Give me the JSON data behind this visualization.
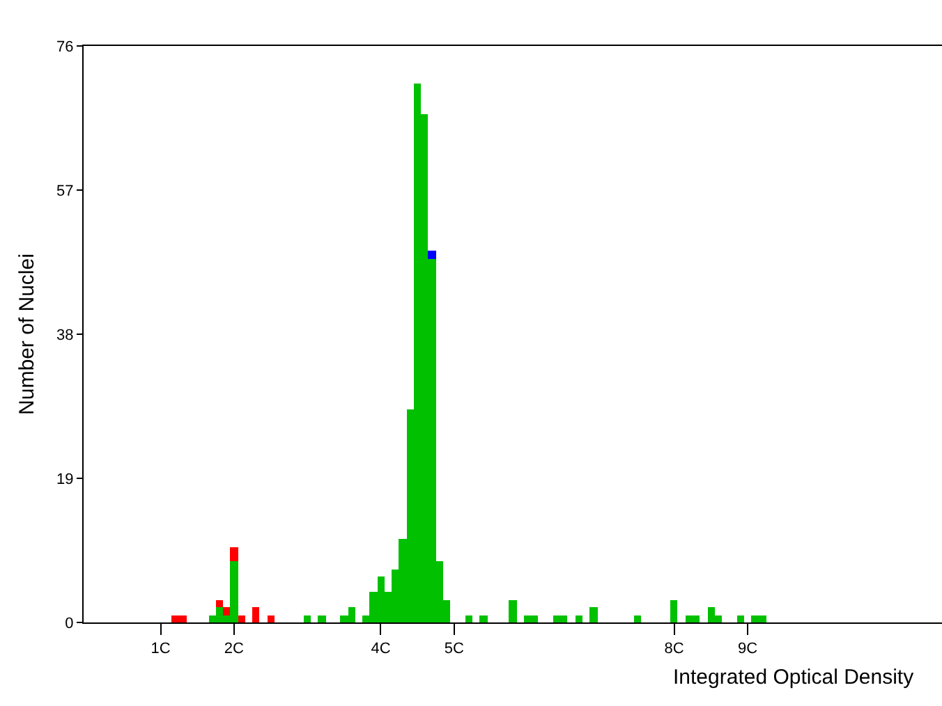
{
  "chart_data": {
    "type": "bar",
    "stacked": true,
    "xlabel": "Integrated Optical Density",
    "ylabel": "Number of Nuclei",
    "categories": [
      null,
      null,
      null,
      null,
      null,
      null,
      null,
      null,
      null,
      null,
      "1C",
      null,
      null,
      null,
      null,
      null,
      null,
      null,
      null,
      null,
      "2C",
      null,
      null,
      null,
      null,
      null,
      null,
      null,
      null,
      null,
      null,
      null,
      null,
      null,
      null,
      null,
      null,
      null,
      null,
      null,
      "4C",
      null,
      null,
      null,
      null,
      null,
      null,
      null,
      null,
      null,
      "5C",
      null,
      null,
      null,
      null,
      null,
      null,
      null,
      null,
      null,
      null,
      null,
      null,
      null,
      null,
      null,
      null,
      null,
      null,
      null,
      null,
      null,
      null,
      null,
      null,
      null,
      null,
      null,
      null,
      null,
      "8C",
      null,
      null,
      null,
      null,
      null,
      null,
      null,
      null,
      null,
      "9C",
      null,
      null,
      null,
      null,
      null,
      null,
      null,
      null,
      null,
      null,
      null,
      null,
      null,
      null,
      null,
      null,
      null,
      null,
      null,
      null,
      null,
      null,
      null,
      null,
      null,
      null
    ],
    "series": [
      {
        "color": "#00c000",
        "values": [
          null,
          null,
          null,
          null,
          null,
          null,
          null,
          null,
          null,
          null,
          null,
          0,
          0,
          0,
          0,
          0,
          0,
          1,
          2,
          1,
          8,
          0,
          0,
          0,
          0,
          0,
          0,
          0,
          0,
          0,
          1,
          0,
          1,
          0,
          0,
          1,
          2,
          0,
          1,
          4,
          6,
          4,
          7,
          11,
          28,
          71,
          67,
          48,
          8,
          3,
          0,
          0,
          1,
          0,
          1,
          0,
          0,
          0,
          3,
          0,
          1,
          1,
          0,
          0,
          1,
          1,
          0,
          1,
          0,
          2,
          0,
          0,
          0,
          0,
          0,
          1,
          0,
          0,
          0,
          0,
          3,
          0,
          1,
          1,
          0,
          2,
          1,
          0,
          0,
          1,
          0,
          1,
          1,
          null,
          null,
          null,
          null,
          null,
          null,
          null,
          null,
          null,
          null,
          null,
          null,
          null,
          null,
          null,
          null,
          null,
          null,
          null,
          null,
          null,
          null,
          null,
          null
        ]
      },
      {
        "color": "#ff0000",
        "values": [
          null,
          null,
          null,
          null,
          null,
          null,
          null,
          null,
          null,
          null,
          null,
          0,
          1,
          1,
          0,
          0,
          0,
          0,
          1,
          1,
          2,
          1,
          0,
          2,
          0,
          1,
          0,
          0,
          0,
          0,
          0,
          0,
          0,
          0,
          0,
          0,
          0,
          0,
          0,
          0,
          0,
          0,
          0,
          0,
          0,
          0,
          0,
          0,
          0,
          0,
          0,
          0,
          0,
          0,
          0,
          0,
          0,
          0,
          0,
          0,
          0,
          0,
          0,
          0,
          0,
          0,
          0,
          0,
          0,
          0,
          0,
          0,
          0,
          0,
          0,
          0,
          0,
          0,
          0,
          0,
          0,
          0,
          0,
          0,
          0,
          0,
          0,
          0,
          0,
          0,
          0,
          0,
          0,
          null,
          null,
          null,
          null,
          null,
          null,
          null,
          null,
          null,
          null,
          null,
          null,
          null,
          null,
          null,
          null,
          null,
          null,
          null,
          null,
          null,
          null,
          null,
          null
        ]
      },
      {
        "color": "#0000ff",
        "values": [
          null,
          null,
          null,
          null,
          null,
          null,
          null,
          null,
          null,
          null,
          null,
          0,
          0,
          0,
          0,
          0,
          0,
          0,
          0,
          0,
          0,
          0,
          0,
          0,
          0,
          0,
          0,
          0,
          0,
          0,
          0,
          0,
          0,
          0,
          0,
          0,
          0,
          0,
          0,
          0,
          0,
          0,
          0,
          0,
          0,
          0,
          0,
          1,
          0,
          0,
          0,
          0,
          0,
          0,
          0,
          0,
          0,
          0,
          0,
          0,
          0,
          0,
          0,
          0,
          0,
          0,
          0,
          0,
          0,
          0,
          0,
          0,
          0,
          0,
          0,
          0,
          0,
          0,
          0,
          0,
          0,
          0,
          0,
          0,
          0,
          0,
          0,
          0,
          0,
          0,
          0,
          0,
          0,
          null,
          null,
          null,
          null,
          null,
          null,
          null,
          null,
          null,
          null,
          null,
          null,
          null,
          null,
          null,
          null,
          null,
          null,
          null,
          null,
          null,
          null,
          null,
          null
        ]
      }
    ],
    "ylim": [
      0,
      76
    ],
    "yticks": [
      0,
      19,
      38,
      57,
      76
    ]
  }
}
